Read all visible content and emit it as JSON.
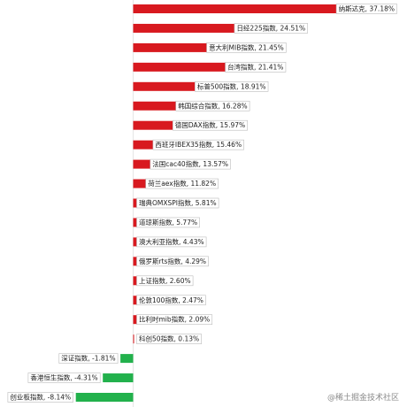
{
  "chart_data": {
    "type": "bar",
    "orientation": "horizontal",
    "categories": [
      "纳斯达克",
      "日经225指数",
      "意大利MIB指数",
      "台湾指数",
      "标普500指数",
      "韩国综合指数",
      "德国DAX指数",
      "西班牙IBEX35指数",
      "法国cac40指数",
      "荷兰aex指数",
      "瑞典OMXSPI指数",
      "道琼斯指数",
      "澳大利亚指数",
      "俄罗斯rts指数",
      "上证指数",
      "伦敦100指数",
      "比利时mib指数",
      "科创50指数",
      "深证指数",
      "香港恒生指数",
      "创业板指数"
    ],
    "values": [
      37.18,
      24.51,
      21.45,
      21.41,
      18.91,
      16.28,
      15.97,
      15.46,
      13.57,
      11.82,
      5.81,
      5.77,
      4.43,
      4.29,
      2.6,
      2.47,
      2.09,
      0.13,
      -1.81,
      -4.31,
      -8.14
    ],
    "labels": [
      "纳斯达克, 37.18%",
      "日经225指数, 24.51%",
      "意大利MIB指数, 21.45%",
      "台湾指数, 21.41%",
      "标普500指数, 18.91%",
      "韩国综合指数, 16.28%",
      "德国DAX指数, 15.97%",
      "西班牙IBEX35指数, 15.46%",
      "法国cac40指数, 13.57%",
      "荷兰aex指数, 11.82%",
      "瑞典OMXSPI指数, 5.81%",
      "道琼斯指数, 5.77%",
      "澳大利亚指数, 4.43%",
      "俄罗斯rts指数, 4.29%",
      "上证指数, 2.60%",
      "伦敦100指数, 2.47%",
      "比利时mib指数, 2.09%",
      "科创50指数, 0.13%",
      "深证指数, -1.81%",
      "香港恒生指数, -4.31%",
      "创业板指数, -8.14%"
    ],
    "xlim": [
      -9,
      38
    ],
    "colors": {
      "positive": "#d8191f",
      "negative": "#22b14c",
      "label_border": "#bbbbbb"
    },
    "grid": false,
    "legend": "none"
  },
  "watermark": "@稀土掘金技术社区"
}
